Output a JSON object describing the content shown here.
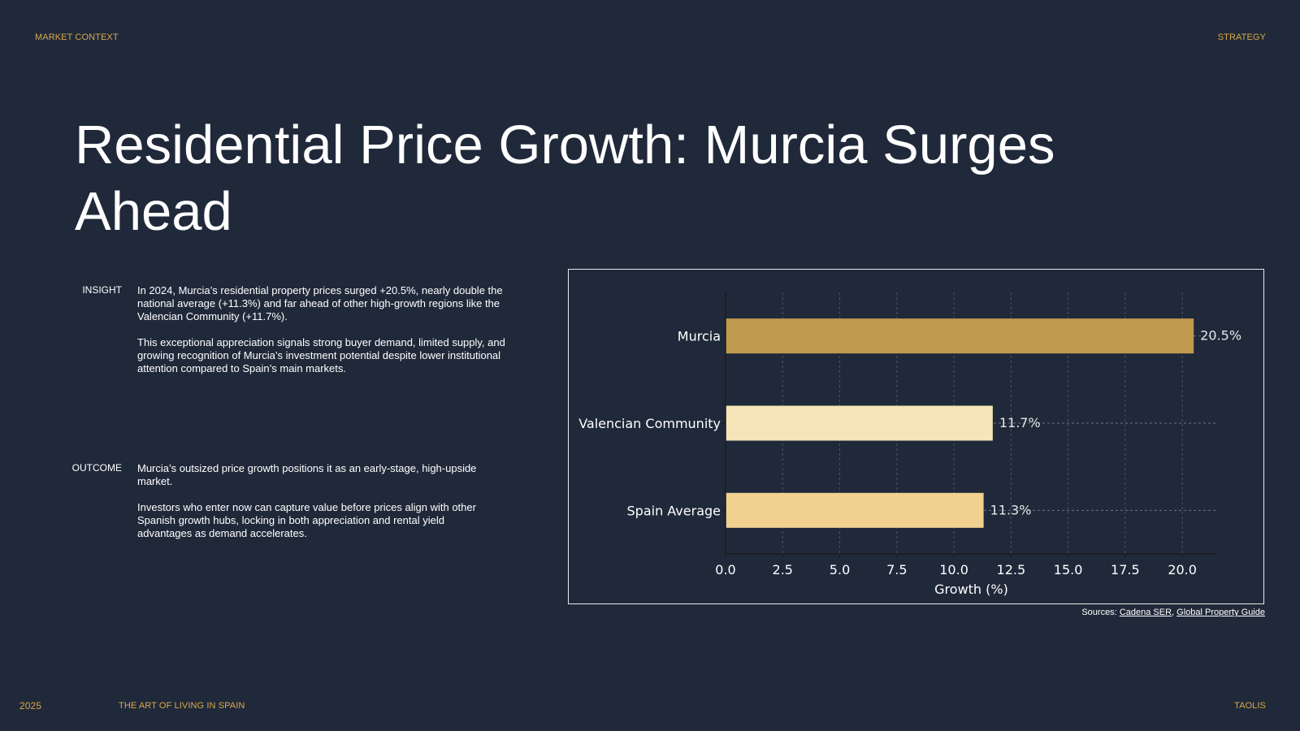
{
  "header": {
    "left": "MARKET CONTEXT",
    "right": "STRATEGY"
  },
  "title": "Residential Price Growth: Murcia Surges Ahead",
  "insight": {
    "label": "INSIGHT",
    "paragraphs": [
      "In 2024, Murcia’s residential property prices surged +20.5%, nearly double the national average (+11.3%) and far ahead of other high-growth regions like the Valencian Community (+11.7%).",
      "This exceptional appreciation signals strong buyer demand, limited supply, and growing recognition of Murcia’s investment potential despite lower institutional attention compared to Spain’s main markets."
    ]
  },
  "outcome": {
    "label": "OUTCOME",
    "paragraphs": [
      "Murcia’s outsized price growth positions it as an early-stage, high-upside market.",
      "Investors who enter now can capture value before prices align with other Spanish growth hubs, locking in both appreciation and rental yield advantages as demand accelerates."
    ]
  },
  "sources": {
    "prefix": "Sources:",
    "links": [
      "Cadena SER",
      "Global Property Guide"
    ]
  },
  "footer": {
    "year": "2025",
    "tagline": "THE ART OF LIVING IN SPAIN",
    "brand": "TAOLIS"
  },
  "chart_data": {
    "type": "bar",
    "orientation": "horizontal",
    "categories": [
      "Murcia",
      "Valencian Community",
      "Spain Average"
    ],
    "values": [
      20.5,
      11.7,
      11.3
    ],
    "value_labels": [
      "20.5%",
      "11.7%",
      "11.3%"
    ],
    "colors": [
      "#c09a50",
      "#f5e5b8",
      "#f0d190"
    ],
    "xlabel": "Growth (%)",
    "ylabel": "",
    "xlim": [
      0,
      21.525
    ],
    "xticks": [
      "0.0",
      "2.5",
      "5.0",
      "7.5",
      "10.0",
      "12.5",
      "15.0",
      "17.5",
      "20.0"
    ],
    "grid": true
  }
}
